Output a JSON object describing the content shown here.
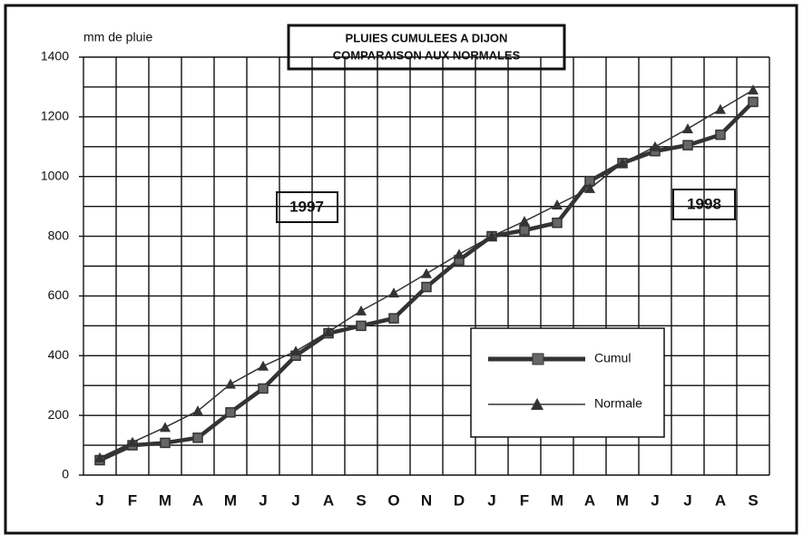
{
  "chart_data": {
    "type": "line",
    "title": [
      "PLUIES CUMULEES A DIJON",
      "COMPARAISON AUX NORMALES"
    ],
    "y_label": "mm de pluie",
    "annotations": [
      "1997",
      "1998"
    ],
    "categories": [
      "J",
      "F",
      "M",
      "A",
      "M",
      "J",
      "J",
      "A",
      "S",
      "O",
      "N",
      "D",
      "J",
      "F",
      "M",
      "A",
      "M",
      "J",
      "J",
      "A",
      "S"
    ],
    "series": [
      {
        "name": "Cumul",
        "color": "#333333",
        "marker": "square",
        "values": [
          50,
          100,
          108,
          125,
          210,
          290,
          400,
          475,
          500,
          525,
          630,
          720,
          800,
          820,
          845,
          985,
          1045,
          1085,
          1105,
          1140,
          1250
        ]
      },
      {
        "name": "Normale",
        "color": "#333333",
        "marker": "triangle",
        "values": [
          58,
          110,
          160,
          215,
          305,
          365,
          415,
          480,
          550,
          610,
          675,
          740,
          800,
          850,
          905,
          960,
          1045,
          1100,
          1160,
          1225,
          1290
        ]
      }
    ],
    "ylim": [
      0,
      1400
    ],
    "yticks": [
      0,
      200,
      400,
      600,
      800,
      1000,
      1200,
      1400
    ],
    "ygrid": [
      0,
      100,
      200,
      300,
      400,
      500,
      600,
      700,
      800,
      900,
      1000,
      1100,
      1200,
      1300,
      1400
    ],
    "grid": true
  }
}
